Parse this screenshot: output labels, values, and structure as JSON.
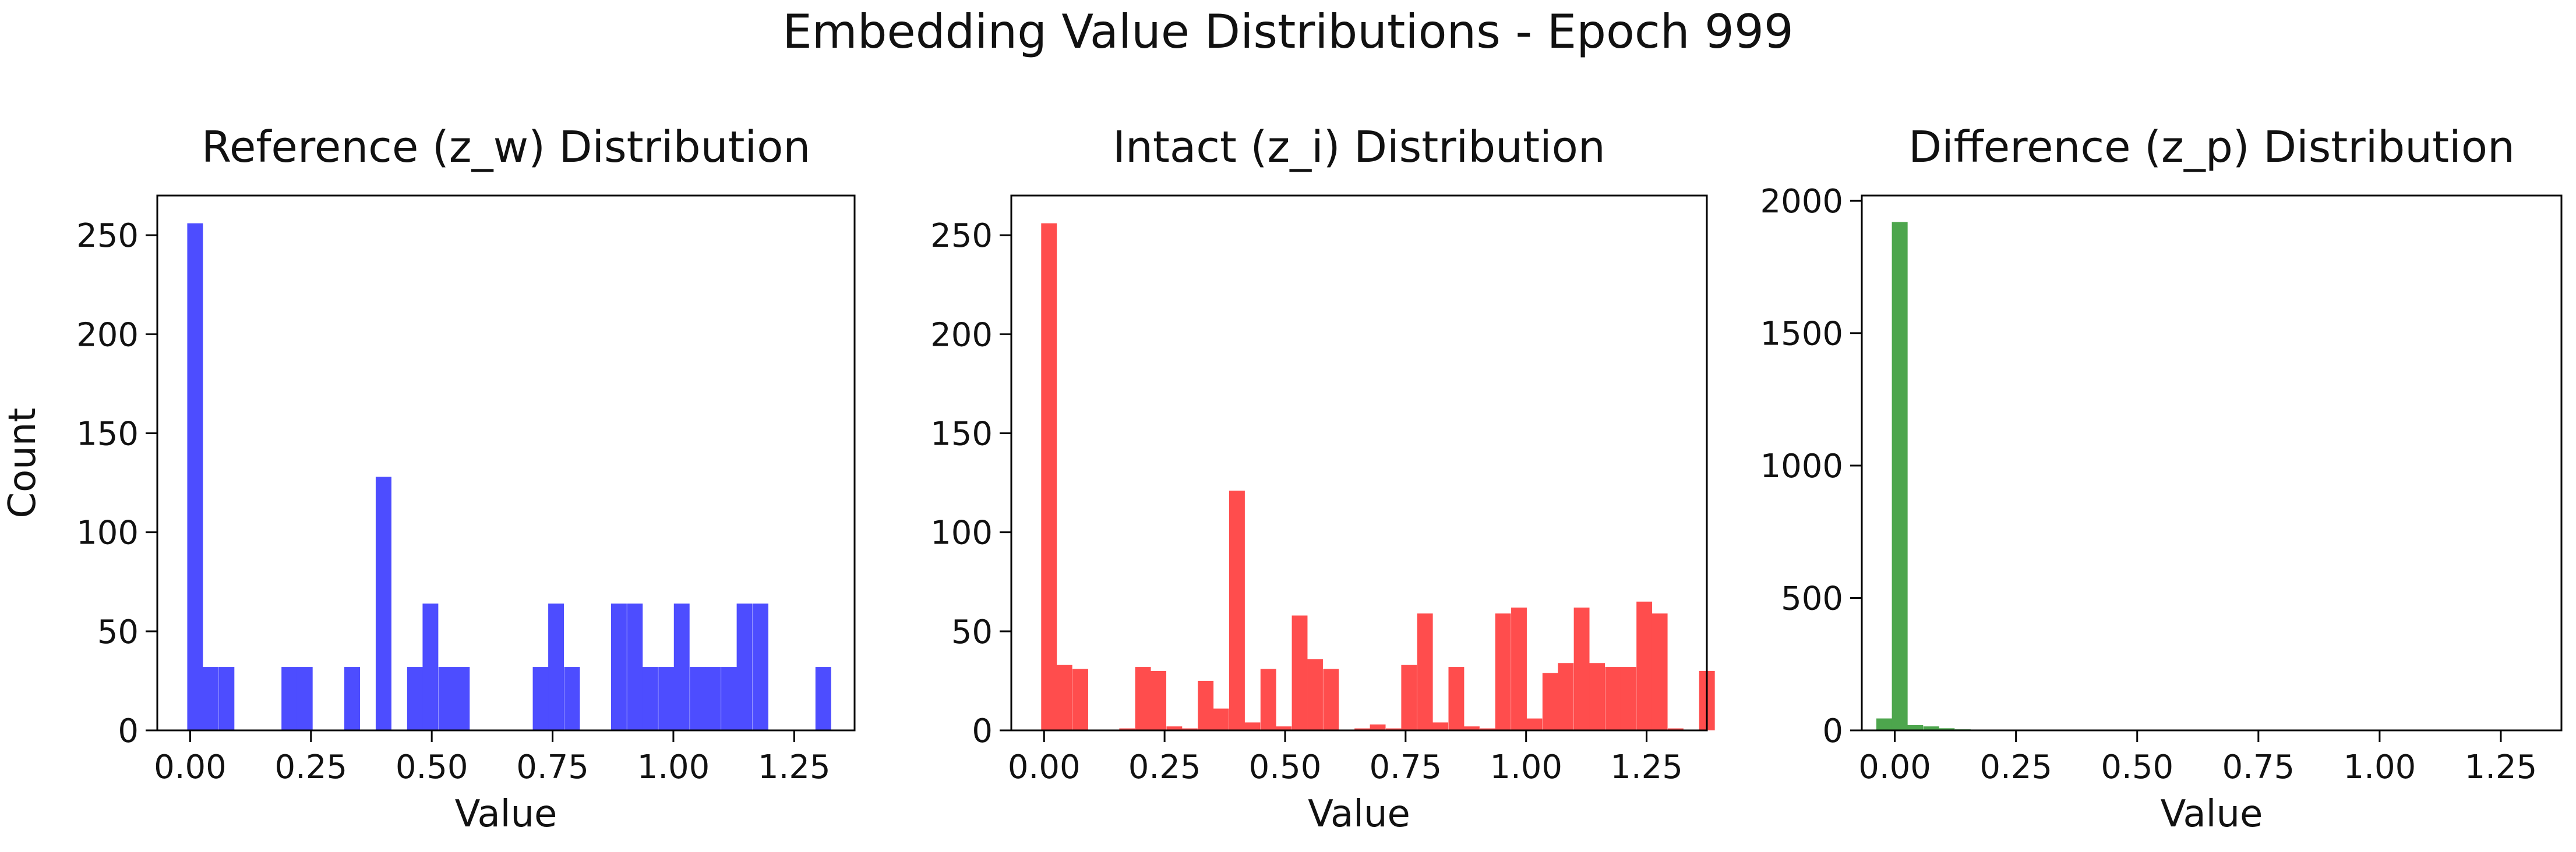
{
  "figure": {
    "title": "Embedding Value Distributions - Epoch 999"
  },
  "chart_data": [
    {
      "type": "bar",
      "title": "Reference (z_w) Distribution",
      "xlabel": "Value",
      "ylabel": "Count",
      "color": "#4d4dff",
      "bin_width": 0.0325,
      "xlim": [
        -0.068,
        1.375
      ],
      "ylim": [
        0,
        270
      ],
      "xticks": [
        "0.00",
        "0.25",
        "0.50",
        "0.75",
        "1.00",
        "1.25"
      ],
      "xtick_values": [
        0,
        0.25,
        0.5,
        0.75,
        1.0,
        1.25
      ],
      "yticks": [
        "0",
        "50",
        "100",
        "150",
        "200",
        "250"
      ],
      "ytick_values": [
        0,
        50,
        100,
        150,
        200,
        250
      ],
      "bins": [
        {
          "x": -0.006,
          "count": 256
        },
        {
          "x": 0.026,
          "count": 32
        },
        {
          "x": 0.059,
          "count": 32
        },
        {
          "x": 0.189,
          "count": 32
        },
        {
          "x": 0.221,
          "count": 32
        },
        {
          "x": 0.319,
          "count": 32
        },
        {
          "x": 0.384,
          "count": 128
        },
        {
          "x": 0.449,
          "count": 32
        },
        {
          "x": 0.481,
          "count": 64
        },
        {
          "x": 0.514,
          "count": 32
        },
        {
          "x": 0.546,
          "count": 32
        },
        {
          "x": 0.709,
          "count": 32
        },
        {
          "x": 0.741,
          "count": 64
        },
        {
          "x": 0.774,
          "count": 32
        },
        {
          "x": 0.871,
          "count": 64
        },
        {
          "x": 0.904,
          "count": 64
        },
        {
          "x": 0.936,
          "count": 32
        },
        {
          "x": 0.969,
          "count": 32
        },
        {
          "x": 1.001,
          "count": 64
        },
        {
          "x": 1.034,
          "count": 32
        },
        {
          "x": 1.066,
          "count": 32
        },
        {
          "x": 1.099,
          "count": 32
        },
        {
          "x": 1.131,
          "count": 64
        },
        {
          "x": 1.164,
          "count": 64
        },
        {
          "x": 1.294,
          "count": 32
        }
      ]
    },
    {
      "type": "bar",
      "title": "Intact (z_i) Distribution",
      "xlabel": "Value",
      "ylabel": "",
      "color": "#ff4d4d",
      "bin_width": 0.0325,
      "xlim": [
        -0.068,
        1.375
      ],
      "ylim": [
        0,
        270
      ],
      "xticks": [
        "0.00",
        "0.25",
        "0.50",
        "0.75",
        "1.00",
        "1.25"
      ],
      "xtick_values": [
        0,
        0.25,
        0.5,
        0.75,
        1.0,
        1.25
      ],
      "yticks": [
        "0",
        "50",
        "100",
        "150",
        "200",
        "250"
      ],
      "ytick_values": [
        0,
        50,
        100,
        150,
        200,
        250
      ],
      "bins": [
        {
          "x": -0.006,
          "count": 256
        },
        {
          "x": 0.026,
          "count": 33
        },
        {
          "x": 0.059,
          "count": 31
        },
        {
          "x": 0.156,
          "count": 1
        },
        {
          "x": 0.189,
          "count": 32
        },
        {
          "x": 0.221,
          "count": 30
        },
        {
          "x": 0.254,
          "count": 2
        },
        {
          "x": 0.286,
          "count": 1
        },
        {
          "x": 0.319,
          "count": 25
        },
        {
          "x": 0.351,
          "count": 11
        },
        {
          "x": 0.384,
          "count": 121
        },
        {
          "x": 0.416,
          "count": 4
        },
        {
          "x": 0.449,
          "count": 31
        },
        {
          "x": 0.481,
          "count": 2
        },
        {
          "x": 0.514,
          "count": 58
        },
        {
          "x": 0.546,
          "count": 36
        },
        {
          "x": 0.579,
          "count": 31
        },
        {
          "x": 0.644,
          "count": 1
        },
        {
          "x": 0.676,
          "count": 3
        },
        {
          "x": 0.709,
          "count": 1
        },
        {
          "x": 0.741,
          "count": 33
        },
        {
          "x": 0.774,
          "count": 59
        },
        {
          "x": 0.806,
          "count": 4
        },
        {
          "x": 0.839,
          "count": 32
        },
        {
          "x": 0.871,
          "count": 2
        },
        {
          "x": 0.904,
          "count": 1
        },
        {
          "x": 0.936,
          "count": 59
        },
        {
          "x": 0.969,
          "count": 62
        },
        {
          "x": 1.001,
          "count": 6
        },
        {
          "x": 1.034,
          "count": 29
        },
        {
          "x": 1.066,
          "count": 34
        },
        {
          "x": 1.099,
          "count": 62
        },
        {
          "x": 1.131,
          "count": 34
        },
        {
          "x": 1.164,
          "count": 32
        },
        {
          "x": 1.196,
          "count": 32
        },
        {
          "x": 1.229,
          "count": 65
        },
        {
          "x": 1.261,
          "count": 59
        },
        {
          "x": 1.294,
          "count": 1
        },
        {
          "x": 1.359,
          "count": 30
        }
      ]
    },
    {
      "type": "bar",
      "title": "Difference (z_p) Distribution",
      "xlabel": "Value",
      "ylabel": "",
      "color": "#4da64d",
      "bin_width": 0.0325,
      "xlim": [
        -0.068,
        1.375
      ],
      "ylim": [
        0,
        2020
      ],
      "xticks": [
        "0.00",
        "0.25",
        "0.50",
        "0.75",
        "1.00",
        "1.25"
      ],
      "xtick_values": [
        0,
        0.25,
        0.5,
        0.75,
        1.0,
        1.25
      ],
      "yticks": [
        "0",
        "500",
        "1000",
        "1500",
        "2000"
      ],
      "ytick_values": [
        0,
        500,
        1000,
        1500,
        2000
      ],
      "bins": [
        {
          "x": -0.038,
          "count": 45
        },
        {
          "x": -0.006,
          "count": 1920
        },
        {
          "x": 0.026,
          "count": 20
        },
        {
          "x": 0.059,
          "count": 15
        },
        {
          "x": 0.091,
          "count": 8
        },
        {
          "x": 0.124,
          "count": 4
        },
        {
          "x": 0.156,
          "count": 2
        },
        {
          "x": 0.189,
          "count": 1
        }
      ]
    }
  ]
}
